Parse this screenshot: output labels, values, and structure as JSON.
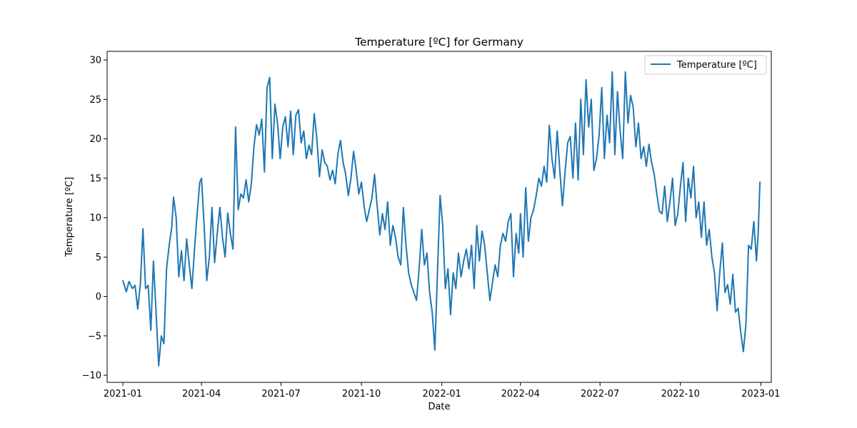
{
  "chart_data": {
    "type": "line",
    "title": "Temperature [ºC] for Germany",
    "xlabel": "Date",
    "ylabel": "Temperature [ºC]",
    "x_ticks": [
      {
        "date": "2021-01-01",
        "label": "2021-01"
      },
      {
        "date": "2021-04-01",
        "label": "2021-04"
      },
      {
        "date": "2021-07-01",
        "label": "2021-07"
      },
      {
        "date": "2021-10-01",
        "label": "2021-10"
      },
      {
        "date": "2022-01-01",
        "label": "2022-01"
      },
      {
        "date": "2022-04-01",
        "label": "2022-04"
      },
      {
        "date": "2022-07-01",
        "label": "2022-07"
      },
      {
        "date": "2022-10-01",
        "label": "2022-10"
      },
      {
        "date": "2023-01-01",
        "label": "2023-01"
      }
    ],
    "y_ticks": [
      -10,
      -5,
      0,
      5,
      10,
      15,
      20,
      25,
      30
    ],
    "xlim": [
      "2020-12-14",
      "2023-01-13"
    ],
    "ylim": [
      -10.9,
      31.1
    ],
    "grid": false,
    "legend_position": "top-right",
    "color": "#1f77b4",
    "series": [
      {
        "name": "Temperature [ºC]",
        "points": [
          [
            "2021-01-01",
            2.0
          ],
          [
            "2021-01-05",
            0.6
          ],
          [
            "2021-01-08",
            1.9
          ],
          [
            "2021-01-12",
            1.0
          ],
          [
            "2021-01-15",
            1.4
          ],
          [
            "2021-01-18",
            -1.6
          ],
          [
            "2021-01-21",
            1.5
          ],
          [
            "2021-01-24",
            8.6
          ],
          [
            "2021-01-27",
            1.0
          ],
          [
            "2021-01-30",
            1.4
          ],
          [
            "2021-02-02",
            -4.3
          ],
          [
            "2021-02-05",
            4.5
          ],
          [
            "2021-02-08",
            -2.0
          ],
          [
            "2021-02-11",
            -8.8
          ],
          [
            "2021-02-14",
            -5.0
          ],
          [
            "2021-02-17",
            -6.0
          ],
          [
            "2021-02-20",
            3.5
          ],
          [
            "2021-02-23",
            6.5
          ],
          [
            "2021-02-26",
            8.8
          ],
          [
            "2021-02-28",
            12.6
          ],
          [
            "2021-03-03",
            10.0
          ],
          [
            "2021-03-06",
            2.5
          ],
          [
            "2021-03-09",
            5.8
          ],
          [
            "2021-03-12",
            2.0
          ],
          [
            "2021-03-15",
            7.3
          ],
          [
            "2021-03-18",
            4.0
          ],
          [
            "2021-03-21",
            1.0
          ],
          [
            "2021-03-24",
            6.0
          ],
          [
            "2021-03-27",
            10.5
          ],
          [
            "2021-03-30",
            14.5
          ],
          [
            "2021-04-01",
            15.0
          ],
          [
            "2021-04-04",
            9.0
          ],
          [
            "2021-04-07",
            2.0
          ],
          [
            "2021-04-10",
            5.0
          ],
          [
            "2021-04-13",
            11.3
          ],
          [
            "2021-04-16",
            4.3
          ],
          [
            "2021-04-19",
            8.0
          ],
          [
            "2021-04-22",
            11.3
          ],
          [
            "2021-04-25",
            7.5
          ],
          [
            "2021-04-28",
            5.0
          ],
          [
            "2021-05-01",
            10.6
          ],
          [
            "2021-05-04",
            8.0
          ],
          [
            "2021-05-07",
            6.0
          ],
          [
            "2021-05-10",
            21.5
          ],
          [
            "2021-05-13",
            11.0
          ],
          [
            "2021-05-16",
            13.0
          ],
          [
            "2021-05-19",
            12.5
          ],
          [
            "2021-05-22",
            14.8
          ],
          [
            "2021-05-25",
            12.0
          ],
          [
            "2021-05-28",
            14.3
          ],
          [
            "2021-05-31",
            19.0
          ],
          [
            "2021-06-03",
            21.8
          ],
          [
            "2021-06-06",
            20.5
          ],
          [
            "2021-06-09",
            22.5
          ],
          [
            "2021-06-12",
            15.8
          ],
          [
            "2021-06-15",
            26.5
          ],
          [
            "2021-06-18",
            27.8
          ],
          [
            "2021-06-21",
            17.5
          ],
          [
            "2021-06-24",
            24.4
          ],
          [
            "2021-06-27",
            22.0
          ],
          [
            "2021-06-30",
            17.5
          ],
          [
            "2021-07-03",
            21.5
          ],
          [
            "2021-07-06",
            22.8
          ],
          [
            "2021-07-09",
            19.0
          ],
          [
            "2021-07-12",
            23.5
          ],
          [
            "2021-07-15",
            18.0
          ],
          [
            "2021-07-18",
            23.0
          ],
          [
            "2021-07-21",
            23.7
          ],
          [
            "2021-07-24",
            19.5
          ],
          [
            "2021-07-27",
            21.0
          ],
          [
            "2021-07-30",
            17.5
          ],
          [
            "2021-08-02",
            19.2
          ],
          [
            "2021-08-05",
            18.0
          ],
          [
            "2021-08-08",
            23.2
          ],
          [
            "2021-08-11",
            20.0
          ],
          [
            "2021-08-14",
            15.2
          ],
          [
            "2021-08-17",
            18.6
          ],
          [
            "2021-08-20",
            17.0
          ],
          [
            "2021-08-23",
            16.5
          ],
          [
            "2021-08-26",
            14.8
          ],
          [
            "2021-08-29",
            16.0
          ],
          [
            "2021-09-01",
            14.3
          ],
          [
            "2021-09-04",
            18.0
          ],
          [
            "2021-09-07",
            19.8
          ],
          [
            "2021-09-10",
            17.0
          ],
          [
            "2021-09-13",
            15.5
          ],
          [
            "2021-09-16",
            12.8
          ],
          [
            "2021-09-19",
            15.0
          ],
          [
            "2021-09-22",
            18.4
          ],
          [
            "2021-09-25",
            16.0
          ],
          [
            "2021-09-28",
            13.0
          ],
          [
            "2021-10-01",
            14.5
          ],
          [
            "2021-10-04",
            11.5
          ],
          [
            "2021-10-07",
            9.5
          ],
          [
            "2021-10-10",
            11.0
          ],
          [
            "2021-10-13",
            12.5
          ],
          [
            "2021-10-16",
            15.5
          ],
          [
            "2021-10-19",
            11.5
          ],
          [
            "2021-10-22",
            7.8
          ],
          [
            "2021-10-25",
            10.5
          ],
          [
            "2021-10-28",
            8.5
          ],
          [
            "2021-10-31",
            12.0
          ],
          [
            "2021-11-03",
            6.5
          ],
          [
            "2021-11-06",
            9.0
          ],
          [
            "2021-11-09",
            7.5
          ],
          [
            "2021-11-12",
            5.0
          ],
          [
            "2021-11-15",
            4.0
          ],
          [
            "2021-11-18",
            11.3
          ],
          [
            "2021-11-21",
            6.5
          ],
          [
            "2021-11-24",
            3.0
          ],
          [
            "2021-11-27",
            1.5
          ],
          [
            "2021-11-30",
            0.5
          ],
          [
            "2021-12-03",
            -0.5
          ],
          [
            "2021-12-06",
            3.5
          ],
          [
            "2021-12-09",
            8.5
          ],
          [
            "2021-12-12",
            4.0
          ],
          [
            "2021-12-15",
            5.5
          ],
          [
            "2021-12-18",
            0.5
          ],
          [
            "2021-12-21",
            -2.0
          ],
          [
            "2021-12-24",
            -6.8
          ],
          [
            "2021-12-27",
            3.0
          ],
          [
            "2021-12-30",
            12.8
          ],
          [
            "2022-01-02",
            9.0
          ],
          [
            "2022-01-05",
            1.0
          ],
          [
            "2022-01-08",
            3.5
          ],
          [
            "2022-01-11",
            -2.3
          ],
          [
            "2022-01-14",
            3.0
          ],
          [
            "2022-01-17",
            1.0
          ],
          [
            "2022-01-20",
            5.5
          ],
          [
            "2022-01-23",
            2.5
          ],
          [
            "2022-01-26",
            4.5
          ],
          [
            "2022-01-29",
            6.0
          ],
          [
            "2022-02-01",
            3.5
          ],
          [
            "2022-02-04",
            6.5
          ],
          [
            "2022-02-07",
            1.0
          ],
          [
            "2022-02-10",
            9.0
          ],
          [
            "2022-02-13",
            4.5
          ],
          [
            "2022-02-16",
            8.3
          ],
          [
            "2022-02-19",
            6.5
          ],
          [
            "2022-02-22",
            3.0
          ],
          [
            "2022-02-25",
            -0.5
          ],
          [
            "2022-02-28",
            1.8
          ],
          [
            "2022-03-03",
            4.0
          ],
          [
            "2022-03-06",
            2.5
          ],
          [
            "2022-03-09",
            6.5
          ],
          [
            "2022-03-12",
            8.0
          ],
          [
            "2022-03-15",
            7.0
          ],
          [
            "2022-03-18",
            9.5
          ],
          [
            "2022-03-21",
            10.5
          ],
          [
            "2022-03-24",
            2.5
          ],
          [
            "2022-03-27",
            8.0
          ],
          [
            "2022-03-30",
            5.5
          ],
          [
            "2022-04-01",
            10.5
          ],
          [
            "2022-04-04",
            5.0
          ],
          [
            "2022-04-07",
            13.8
          ],
          [
            "2022-04-10",
            7.0
          ],
          [
            "2022-04-13",
            10.0
          ],
          [
            "2022-04-16",
            11.0
          ],
          [
            "2022-04-19",
            12.8
          ],
          [
            "2022-04-22",
            15.0
          ],
          [
            "2022-04-25",
            14.0
          ],
          [
            "2022-04-28",
            16.5
          ],
          [
            "2022-05-01",
            14.5
          ],
          [
            "2022-05-04",
            21.7
          ],
          [
            "2022-05-07",
            17.5
          ],
          [
            "2022-05-10",
            15.0
          ],
          [
            "2022-05-13",
            21.0
          ],
          [
            "2022-05-16",
            16.0
          ],
          [
            "2022-05-19",
            11.5
          ],
          [
            "2022-05-22",
            15.8
          ],
          [
            "2022-05-25",
            19.5
          ],
          [
            "2022-05-28",
            20.3
          ],
          [
            "2022-05-31",
            15.0
          ],
          [
            "2022-06-03",
            22.0
          ],
          [
            "2022-06-06",
            14.8
          ],
          [
            "2022-06-09",
            25.0
          ],
          [
            "2022-06-12",
            18.0
          ],
          [
            "2022-06-15",
            27.5
          ],
          [
            "2022-06-18",
            21.5
          ],
          [
            "2022-06-21",
            25.0
          ],
          [
            "2022-06-24",
            16.0
          ],
          [
            "2022-06-27",
            17.5
          ],
          [
            "2022-06-30",
            20.5
          ],
          [
            "2022-07-03",
            26.5
          ],
          [
            "2022-07-06",
            17.5
          ],
          [
            "2022-07-09",
            23.0
          ],
          [
            "2022-07-12",
            19.5
          ],
          [
            "2022-07-15",
            28.5
          ],
          [
            "2022-07-18",
            18.0
          ],
          [
            "2022-07-21",
            26.0
          ],
          [
            "2022-07-24",
            21.0
          ],
          [
            "2022-07-27",
            17.5
          ],
          [
            "2022-07-30",
            28.5
          ],
          [
            "2022-08-02",
            22.0
          ],
          [
            "2022-08-05",
            25.5
          ],
          [
            "2022-08-08",
            24.0
          ],
          [
            "2022-08-11",
            19.0
          ],
          [
            "2022-08-14",
            22.0
          ],
          [
            "2022-08-17",
            17.5
          ],
          [
            "2022-08-20",
            19.0
          ],
          [
            "2022-08-23",
            16.5
          ],
          [
            "2022-08-26",
            19.3
          ],
          [
            "2022-08-29",
            17.0
          ],
          [
            "2022-09-01",
            15.5
          ],
          [
            "2022-09-04",
            13.0
          ],
          [
            "2022-09-07",
            10.8
          ],
          [
            "2022-09-10",
            10.5
          ],
          [
            "2022-09-13",
            14.0
          ],
          [
            "2022-09-16",
            9.5
          ],
          [
            "2022-09-19",
            12.0
          ],
          [
            "2022-09-22",
            15.0
          ],
          [
            "2022-09-25",
            9.0
          ],
          [
            "2022-09-28",
            10.5
          ],
          [
            "2022-10-01",
            14.0
          ],
          [
            "2022-10-04",
            17.0
          ],
          [
            "2022-10-07",
            9.5
          ],
          [
            "2022-10-10",
            15.0
          ],
          [
            "2022-10-13",
            12.5
          ],
          [
            "2022-10-16",
            16.5
          ],
          [
            "2022-10-19",
            10.0
          ],
          [
            "2022-10-22",
            12.0
          ],
          [
            "2022-10-25",
            7.5
          ],
          [
            "2022-10-28",
            12.0
          ],
          [
            "2022-10-31",
            6.5
          ],
          [
            "2022-11-03",
            8.5
          ],
          [
            "2022-11-06",
            5.0
          ],
          [
            "2022-11-09",
            3.0
          ],
          [
            "2022-11-12",
            -1.8
          ],
          [
            "2022-11-15",
            3.0
          ],
          [
            "2022-11-18",
            6.8
          ],
          [
            "2022-11-21",
            0.5
          ],
          [
            "2022-11-24",
            1.5
          ],
          [
            "2022-11-27",
            -1.0
          ],
          [
            "2022-11-30",
            2.8
          ],
          [
            "2022-12-03",
            -2.0
          ],
          [
            "2022-12-06",
            -1.5
          ],
          [
            "2022-12-09",
            -4.5
          ],
          [
            "2022-12-12",
            -7.0
          ],
          [
            "2022-12-15",
            -3.5
          ],
          [
            "2022-12-18",
            6.5
          ],
          [
            "2022-12-21",
            6.0
          ],
          [
            "2022-12-24",
            9.5
          ],
          [
            "2022-12-27",
            4.5
          ],
          [
            "2022-12-29",
            8.0
          ],
          [
            "2022-12-31",
            14.5
          ]
        ]
      }
    ]
  }
}
